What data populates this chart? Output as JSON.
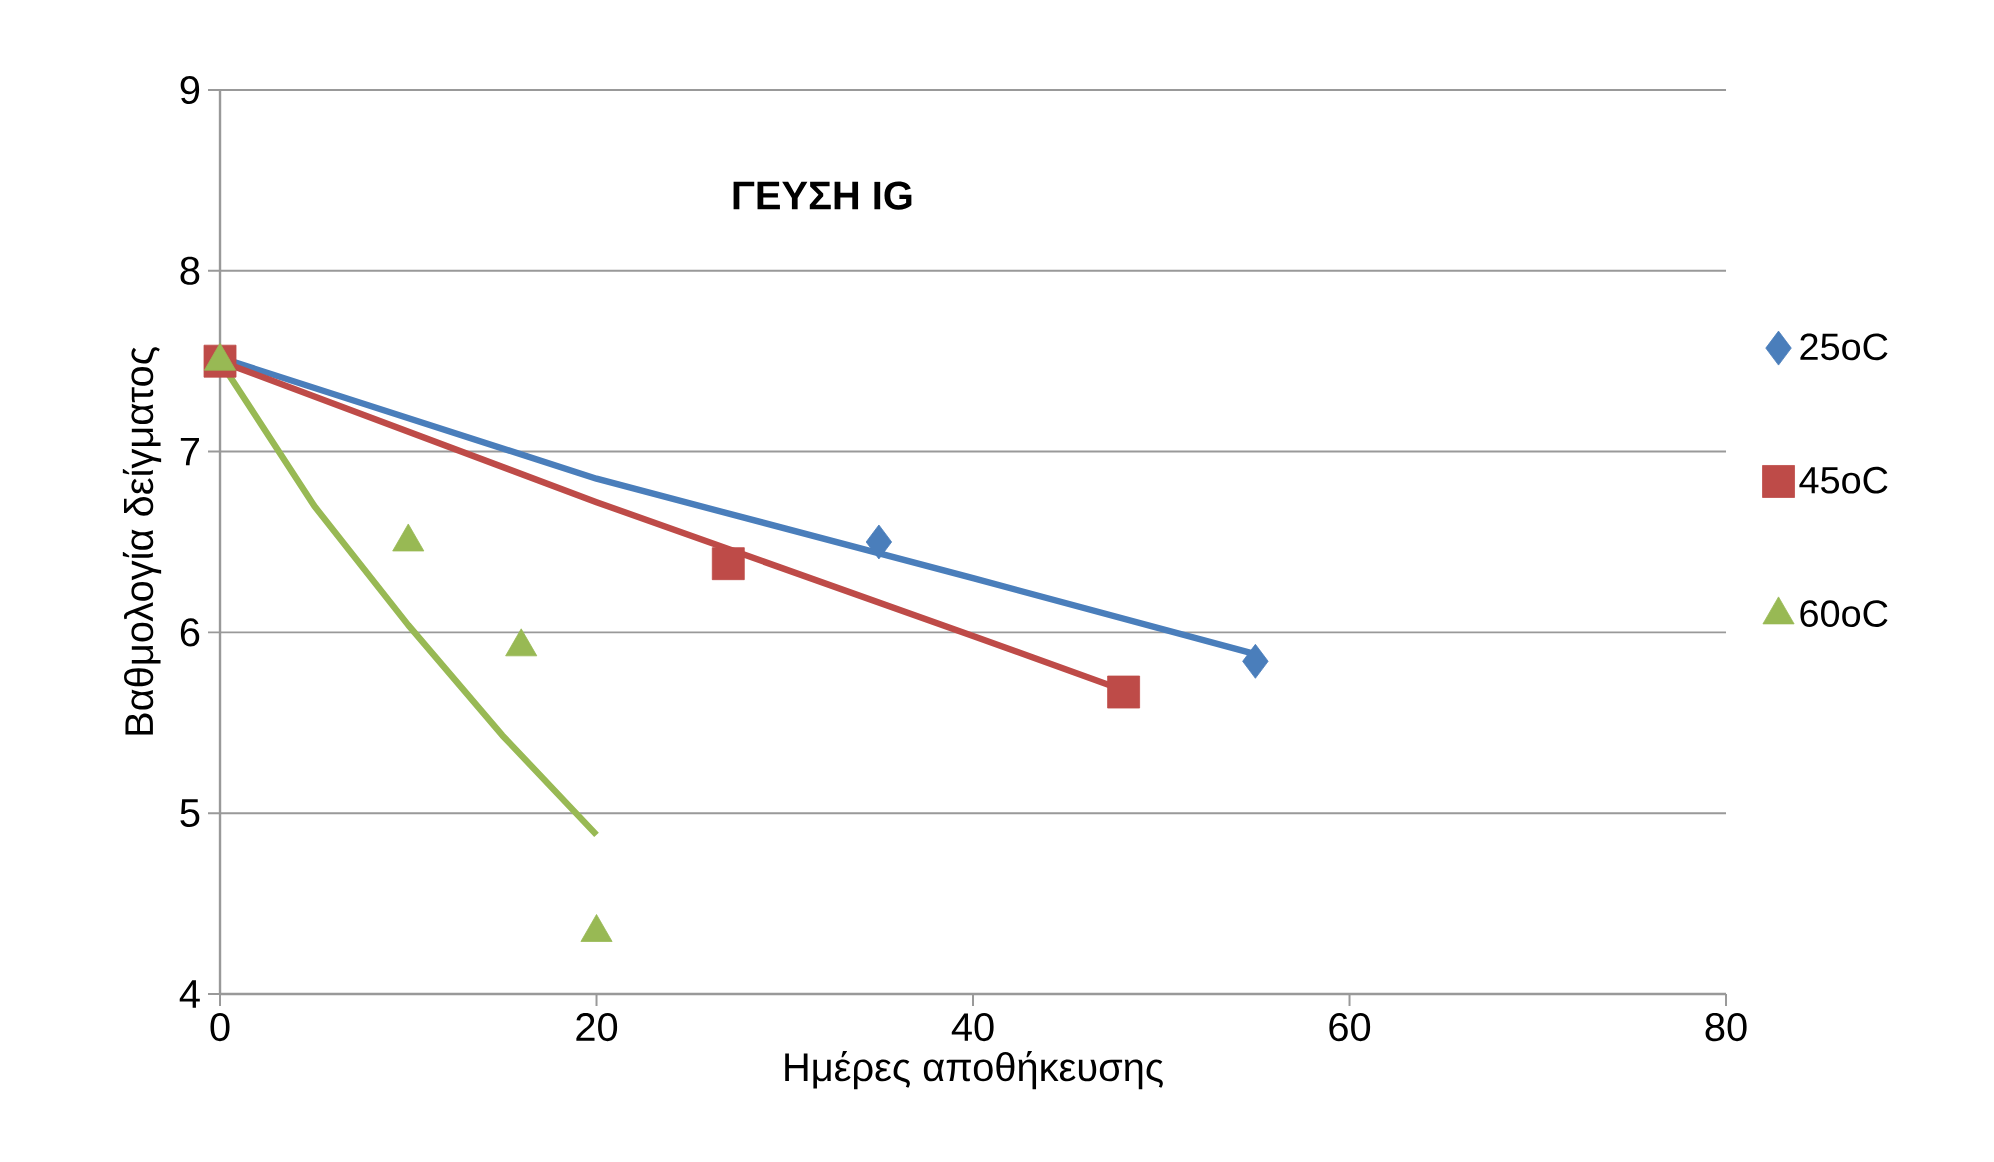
{
  "chart_data": {
    "type": "scatter",
    "title": "ΓΕΥΣΗ IG",
    "xlabel": "Ημέρες αποθήκευσης",
    "ylabel": "Βαθμολογία δείγματος",
    "xlim": [
      0,
      80
    ],
    "xticks": [
      0,
      20,
      40,
      60,
      80
    ],
    "ylim": [
      4,
      9
    ],
    "yticks": [
      4,
      5,
      6,
      7,
      8,
      9
    ],
    "grid": "y",
    "legend": "right",
    "series": [
      {
        "name": "25oC",
        "color": "#4a7ebb",
        "marker": "diamond",
        "x": [
          35,
          55
        ],
        "values": [
          6.5,
          5.84
        ]
      },
      {
        "name": "45oC",
        "color": "#be4b48",
        "marker": "square",
        "x": [
          0,
          27,
          48
        ],
        "values": [
          7.5,
          6.38,
          5.67
        ]
      },
      {
        "name": "60oC",
        "color": "#98b954",
        "marker": "triangle",
        "x": [
          0,
          10,
          16,
          20
        ],
        "values": [
          7.5,
          6.5,
          5.92,
          4.34
        ]
      },
      {
        "type": "line",
        "color": "#4a7ebb",
        "marker": "none",
        "x": [
          0,
          20,
          40,
          55
        ],
        "values": [
          7.52,
          6.85,
          6.3,
          5.88
        ]
      },
      {
        "type": "line",
        "color": "#be4b48",
        "marker": "none",
        "x": [
          0,
          20,
          40,
          48
        ],
        "values": [
          7.5,
          6.72,
          5.98,
          5.68
        ]
      },
      {
        "type": "line",
        "color": "#98b954",
        "marker": "none",
        "x": [
          0,
          5,
          10,
          15,
          20
        ],
        "values": [
          7.5,
          6.7,
          6.04,
          5.43,
          4.88
        ]
      }
    ]
  }
}
